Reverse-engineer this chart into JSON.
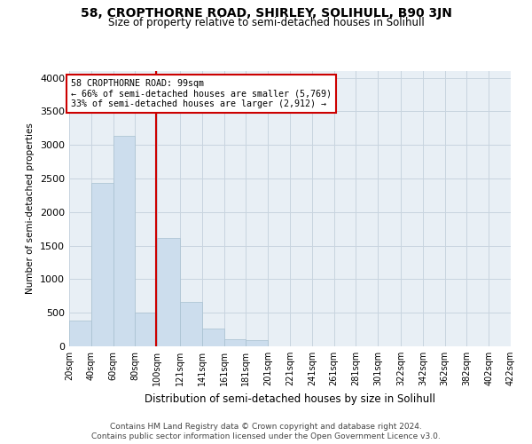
{
  "title": "58, CROPTHORNE ROAD, SHIRLEY, SOLIHULL, B90 3JN",
  "subtitle": "Size of property relative to semi-detached houses in Solihull",
  "xlabel": "Distribution of semi-detached houses by size in Solihull",
  "ylabel": "Number of semi-detached properties",
  "footnote1": "Contains HM Land Registry data © Crown copyright and database right 2024.",
  "footnote2": "Contains public sector information licensed under the Open Government Licence v3.0.",
  "annotation_title": "58 CROPTHORNE ROAD: 99sqm",
  "annotation_line1": "← 66% of semi-detached houses are smaller (5,769)",
  "annotation_line2": "33% of semi-detached houses are larger (2,912) →",
  "property_size": 99,
  "bar_edges": [
    20,
    40,
    60,
    80,
    100,
    121,
    141,
    161,
    181,
    201,
    221,
    241,
    261,
    281,
    301,
    322,
    342,
    362,
    382,
    402,
    422
  ],
  "bar_values": [
    390,
    2430,
    3130,
    500,
    1620,
    660,
    270,
    100,
    90,
    0,
    0,
    0,
    0,
    0,
    0,
    0,
    0,
    0,
    0,
    0
  ],
  "bar_color": "#ccdded",
  "bar_edgecolor": "#a8c0d0",
  "vline_color": "#cc0000",
  "vline_x": 99,
  "annotation_box_edgecolor": "#cc0000",
  "annotation_bg": "#ffffff",
  "background_color": "#ffffff",
  "axes_bg_color": "#e8eff5",
  "grid_color": "#c8d4df",
  "ylim": [
    0,
    4100
  ],
  "yticks": [
    0,
    500,
    1000,
    1500,
    2000,
    2500,
    3000,
    3500,
    4000
  ]
}
